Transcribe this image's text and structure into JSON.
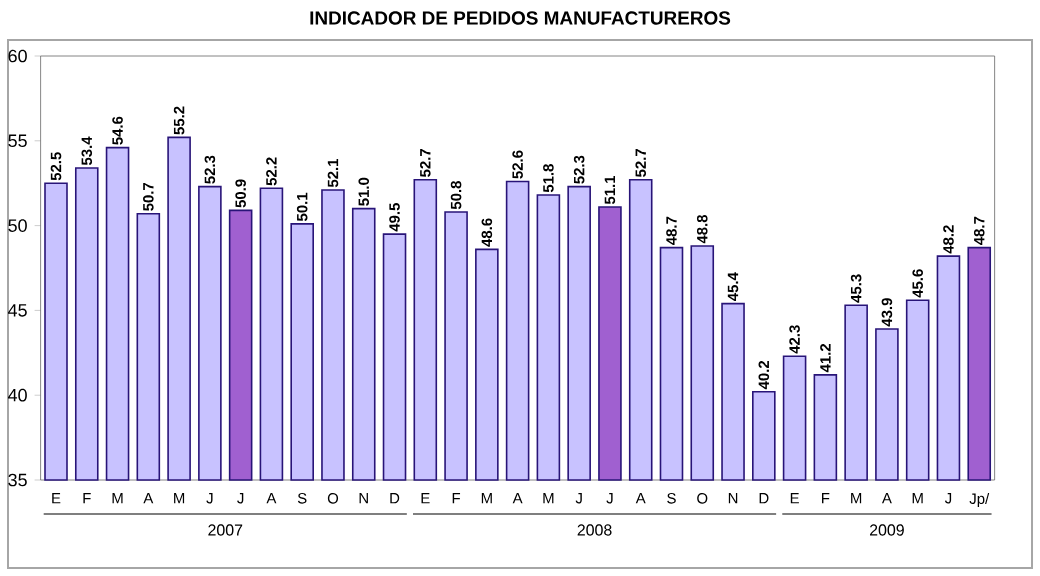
{
  "chart_data": {
    "type": "bar",
    "title": "INDICADOR DE PEDIDOS MANUFACTUREROS",
    "categories": [
      "E",
      "F",
      "M",
      "A",
      "M",
      "J",
      "J",
      "A",
      "S",
      "O",
      "N",
      "D",
      "E",
      "F",
      "M",
      "A",
      "M",
      "J",
      "J",
      "A",
      "S",
      "O",
      "N",
      "D",
      "E",
      "F",
      "M",
      "A",
      "M",
      "J",
      "Jp/"
    ],
    "values": [
      52.5,
      53.4,
      54.6,
      50.7,
      55.2,
      52.3,
      50.9,
      52.2,
      50.1,
      52.1,
      51.0,
      49.5,
      52.7,
      50.8,
      48.6,
      52.6,
      51.8,
      52.3,
      51.1,
      52.7,
      48.7,
      48.8,
      45.4,
      40.2,
      42.3,
      41.2,
      45.3,
      43.9,
      45.6,
      48.2,
      48.7
    ],
    "colors": [
      "#c8c2ff",
      "#c8c2ff",
      "#c8c2ff",
      "#c8c2ff",
      "#c8c2ff",
      "#c8c2ff",
      "#a060d0",
      "#c8c2ff",
      "#c8c2ff",
      "#c8c2ff",
      "#c8c2ff",
      "#c8c2ff",
      "#c8c2ff",
      "#c8c2ff",
      "#c8c2ff",
      "#c8c2ff",
      "#c8c2ff",
      "#c8c2ff",
      "#a060d0",
      "#c8c2ff",
      "#c8c2ff",
      "#c8c2ff",
      "#c8c2ff",
      "#c8c2ff",
      "#c8c2ff",
      "#c8c2ff",
      "#c8c2ff",
      "#c8c2ff",
      "#c8c2ff",
      "#c8c2ff",
      "#a060d0"
    ],
    "ylim": [
      35,
      60
    ],
    "yticks": [
      35,
      40,
      45,
      50,
      55,
      60
    ],
    "value_labels": [
      "52.5",
      "53.4",
      "54.6",
      "50.7",
      "55.2",
      "52.3",
      "50.9",
      "52.2",
      "50.1",
      "52.1",
      "51.0",
      "49.5",
      "52.7",
      "50.8",
      "48.6",
      "52.6",
      "51.8",
      "52.3",
      "51.1",
      "52.7",
      "48.7",
      "48.8",
      "45.4",
      "40.2",
      "42.3",
      "41.2",
      "45.3",
      "43.9",
      "45.6",
      "48.2",
      "48.7"
    ],
    "annotations": [
      "2007",
      "2008",
      "2009"
    ]
  }
}
